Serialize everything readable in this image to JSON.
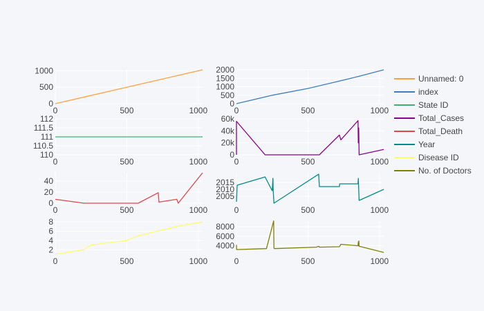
{
  "chart_data": {
    "type": "line",
    "title": "",
    "legend": {
      "placement": "right"
    },
    "grid": true,
    "series": [
      {
        "name": "Unnamed: 0",
        "color": "#ff9f40",
        "xlim": [
          0,
          1030
        ],
        "ylim": [
          0,
          1030
        ],
        "x_ticks": [
          "0",
          "500",
          "1000"
        ],
        "y_ticks": [
          "0",
          "500",
          "1000"
        ],
        "y_tick_values": [
          0,
          500,
          1000
        ],
        "x": [
          0,
          1030
        ],
        "y": [
          0,
          1030
        ]
      },
      {
        "name": "index",
        "color": "#3b7dc0",
        "xlim": [
          0,
          1030
        ],
        "ylim": [
          0,
          2000
        ],
        "x_ticks": [
          "0",
          "500",
          "1000"
        ],
        "y_ticks": [
          "0",
          "500",
          "1000",
          "1500",
          "2000"
        ],
        "y_tick_values": [
          0,
          500,
          1000,
          1500,
          2000
        ],
        "x": [
          0,
          250,
          500,
          700,
          850,
          1030
        ],
        "y": [
          0,
          500,
          900,
          1300,
          1600,
          2000
        ]
      },
      {
        "name": "State ID",
        "color": "#3cb371",
        "xlim": [
          0,
          1030
        ],
        "ylim": [
          110,
          112
        ],
        "x_ticks": [
          "0",
          "500",
          "1000"
        ],
        "y_ticks": [
          "110",
          "110.5",
          "111",
          "111.5",
          "112"
        ],
        "y_tick_values": [
          110,
          110.5,
          111,
          111.5,
          112
        ],
        "x": [
          0,
          1030
        ],
        "y": [
          111,
          111
        ]
      },
      {
        "name": "Total_Cases",
        "color": "#8b008b",
        "xlim": [
          0,
          1030
        ],
        "ylim": [
          0,
          60000
        ],
        "x_ticks": [
          "0",
          "500",
          "1000"
        ],
        "y_ticks": [
          "0",
          "20k",
          "40k",
          "60k"
        ],
        "y_tick_values": [
          0,
          20000,
          40000,
          60000
        ],
        "x": [
          0,
          0,
          200,
          580,
          720,
          730,
          850,
          852,
          855,
          858,
          1030
        ],
        "y": [
          0,
          56000,
          0,
          0,
          33000,
          25000,
          57000,
          20000,
          45000,
          0,
          9000
        ]
      },
      {
        "name": "Total_Death",
        "color": "#e0474c",
        "xlim": [
          0,
          1030
        ],
        "ylim": [
          0,
          55
        ],
        "x_ticks": [
          "0",
          "500",
          "1000"
        ],
        "y_ticks": [
          "0",
          "20",
          "40"
        ],
        "y_tick_values": [
          0,
          20,
          40
        ],
        "x": [
          0,
          200,
          580,
          720,
          725,
          850,
          855,
          860,
          1030
        ],
        "y": [
          7,
          0,
          0,
          19,
          2,
          7,
          3,
          0,
          55
        ]
      },
      {
        "name": "Year",
        "color": "#008b8b",
        "xlim": [
          0,
          1030
        ],
        "ylim": [
          2000,
          2022
        ],
        "x_ticks": [
          "0",
          "500",
          "1000"
        ],
        "y_ticks": [
          "2005",
          "2010",
          "2015"
        ],
        "y_tick_values": [
          2005,
          2010,
          2015
        ],
        "x": [
          0,
          5,
          200,
          210,
          250,
          255,
          257,
          262,
          575,
          580,
          585,
          720,
          722,
          850,
          852,
          858,
          1030
        ],
        "y": [
          2001,
          2013,
          2019,
          2017,
          2009,
          2018,
          2010,
          2000,
          2021,
          2012,
          2012,
          2012,
          2014,
          2014,
          2018,
          2002,
          2010
        ]
      },
      {
        "name": "Disease ID",
        "color": "#ffff66",
        "xlim": [
          0,
          1030
        ],
        "ylim": [
          1,
          8.3
        ],
        "x_ticks": [
          "0",
          "500",
          "1000"
        ],
        "y_ticks": [
          "2",
          "4",
          "6",
          "8"
        ],
        "y_tick_values": [
          2,
          4,
          6,
          8
        ],
        "x": [
          0,
          200,
          250,
          500,
          580,
          850,
          1030
        ],
        "y": [
          1,
          2,
          3,
          4,
          5,
          7,
          8
        ]
      },
      {
        "name": "No. of Doctors",
        "color": "#808000",
        "xlim": [
          0,
          1030
        ],
        "ylim": [
          2200,
          9300
        ],
        "x_ticks": [
          "0",
          "500",
          "1000"
        ],
        "y_ticks": [
          "4000",
          "6000",
          "8000"
        ],
        "y_tick_values": [
          4000,
          6000,
          8000
        ],
        "x": [
          0,
          1,
          210,
          260,
          262,
          265,
          560,
          575,
          580,
          720,
          730,
          850,
          852,
          854,
          856,
          858,
          1030
        ],
        "y": [
          4200,
          3200,
          3400,
          9200,
          3500,
          3400,
          3700,
          3900,
          3700,
          3800,
          4300,
          4000,
          4800,
          4000,
          5000,
          3900,
          2600
        ]
      }
    ]
  }
}
